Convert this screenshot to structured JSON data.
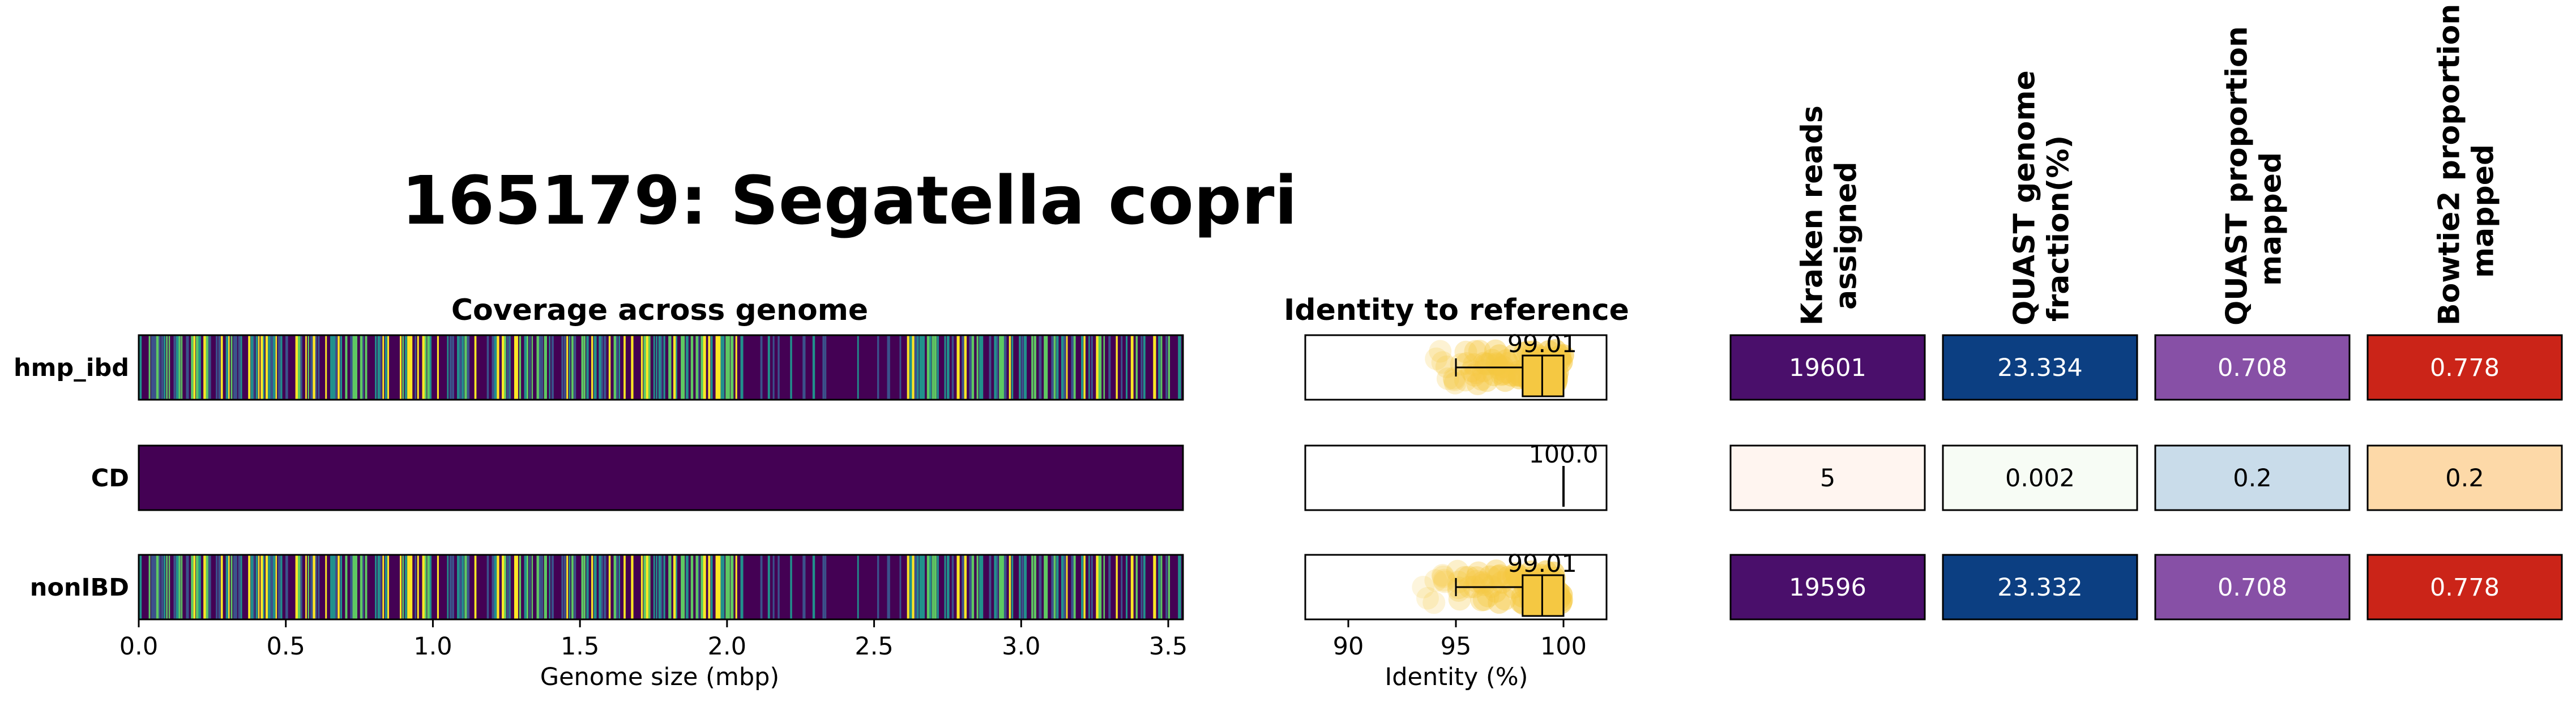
{
  "figure": {
    "title": "165179: Segatella copri"
  },
  "rows": [
    "hmp_ibd",
    "CD",
    "nonIBD"
  ],
  "coverage": {
    "title": "Coverage across genome",
    "xlabel": "Genome size (mbp)",
    "xlim": [
      0,
      3.55
    ],
    "xticks": [
      "0.0",
      "0.5",
      "1.0",
      "1.5",
      "2.0",
      "2.5",
      "3.0",
      "3.5"
    ],
    "xtick_values": [
      0,
      0.5,
      1.0,
      1.5,
      2.0,
      2.5,
      3.0,
      3.5
    ],
    "colormap": [
      "#440154",
      "#3b528b",
      "#21918c",
      "#5ec962",
      "#fde725"
    ],
    "patterns": [
      "mixed",
      "empty",
      "mixed"
    ]
  },
  "identity": {
    "title": "Identity to reference",
    "xlabel": "Identity (%)",
    "xlim": [
      88,
      102
    ],
    "xticks": [
      "90",
      "95",
      "100"
    ],
    "xtick_values": [
      90,
      95,
      100
    ],
    "box_color": "#f5c842",
    "stats": [
      {
        "whisker_low": 95.0,
        "q1": 98.1,
        "median": 99.01,
        "q3": 100.0,
        "whisker_high": 100.0,
        "label": "99.01"
      },
      {
        "whisker_low": 100.0,
        "q1": 100.0,
        "median": 100.0,
        "q3": 100.0,
        "whisker_high": 100.0,
        "label": "100.0"
      },
      {
        "whisker_low": 95.0,
        "q1": 98.1,
        "median": 99.01,
        "q3": 100.0,
        "whisker_high": 100.0,
        "label": "99.01"
      }
    ]
  },
  "metrics": {
    "columns": [
      {
        "header": [
          "Kraken reads",
          "assigned"
        ],
        "values": [
          "19601",
          "5",
          "19596"
        ],
        "colors": [
          "#4a0f6b",
          "#fff5f0",
          "#4a0f6b"
        ],
        "text_colors": [
          "#ffffff",
          "#000000",
          "#ffffff"
        ]
      },
      {
        "header": [
          "QUAST genome",
          "fraction(%)"
        ],
        "values": [
          "23.334",
          "0.002",
          "23.332"
        ],
        "colors": [
          "#0c3f82",
          "#f7fcf5",
          "#0c3f82"
        ],
        "text_colors": [
          "#ffffff",
          "#000000",
          "#ffffff"
        ]
      },
      {
        "header": [
          "QUAST proportion",
          "mapped"
        ],
        "values": [
          "0.708",
          "0.2",
          "0.708"
        ],
        "colors": [
          "#8750a6",
          "#c9dcea",
          "#8750a6"
        ],
        "text_colors": [
          "#ffffff",
          "#000000",
          "#ffffff"
        ]
      },
      {
        "header": [
          "Bowtie2 proportion",
          "mapped"
        ],
        "values": [
          "0.778",
          "0.2",
          "0.778"
        ],
        "colors": [
          "#cb2418",
          "#fdd9a8",
          "#cb2418"
        ],
        "text_colors": [
          "#ffffff",
          "#000000",
          "#ffffff"
        ]
      }
    ]
  },
  "chart_data": [
    {
      "type": "heatmap",
      "title": "Coverage across genome",
      "xlabel": "Genome size (mbp)",
      "ylabel": "",
      "xlim": [
        0,
        3.55
      ],
      "rows": [
        "hmp_ibd",
        "CD",
        "nonIBD"
      ]
    },
    {
      "type": "box",
      "title": "Identity to reference",
      "xlabel": "Identity (%)",
      "xlim": [
        88,
        102
      ],
      "rows": [
        "hmp_ibd",
        "CD",
        "nonIBD"
      ],
      "medians": [
        99.01,
        100.0,
        99.01
      ]
    },
    {
      "type": "table",
      "columns": [
        "Kraken reads assigned",
        "QUAST genome fraction(%)",
        "QUAST proportion mapped",
        "Bowtie2 proportion mapped"
      ],
      "rows": [
        "hmp_ibd",
        "CD",
        "nonIBD"
      ],
      "values": [
        [
          "19601",
          "23.334",
          "0.708",
          "0.778"
        ],
        [
          "5",
          "0.002",
          "0.2",
          "0.2"
        ],
        [
          "19596",
          "23.332",
          "0.708",
          "0.778"
        ]
      ]
    }
  ]
}
